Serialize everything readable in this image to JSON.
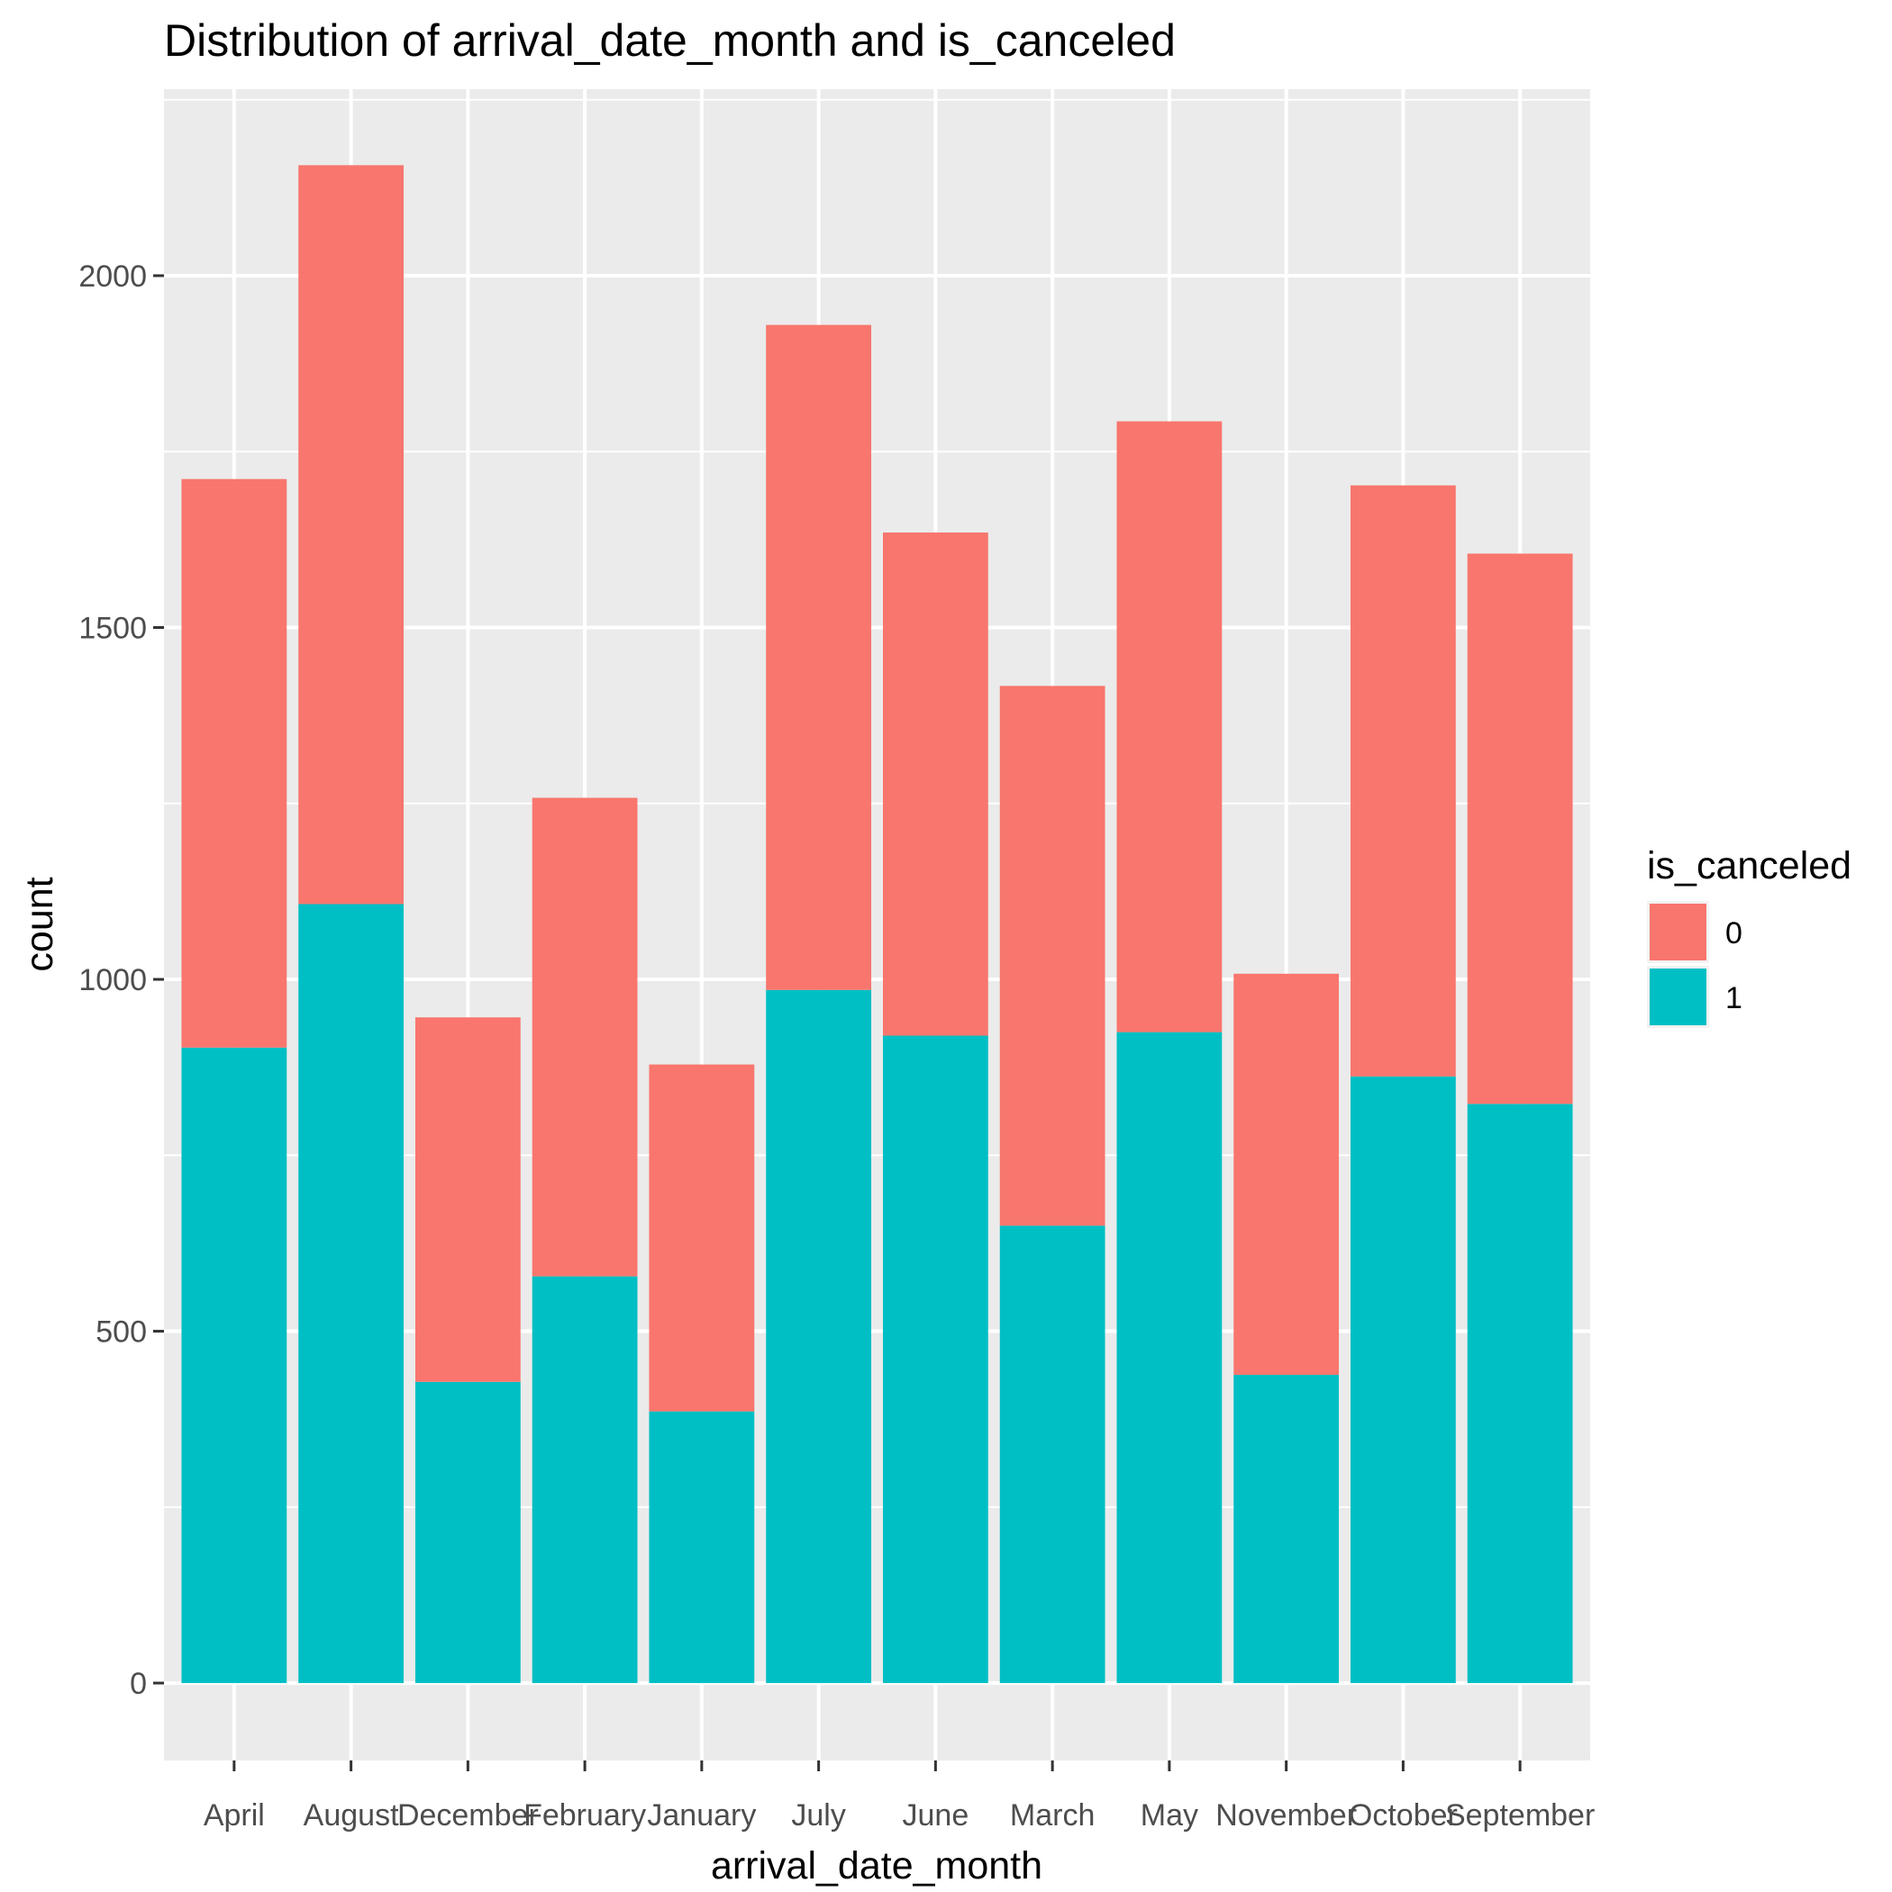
{
  "chart_data": {
    "type": "bar",
    "stacked": true,
    "title": "Distribution of arrival_date_month and is_canceled",
    "xlabel": "arrival_date_month",
    "ylabel": "count",
    "categories": [
      "April",
      "August",
      "December",
      "February",
      "January",
      "July",
      "June",
      "March",
      "May",
      "November",
      "October",
      "September"
    ],
    "series": [
      {
        "name": "0",
        "color": "#F8766D",
        "values": [
          808,
          1050,
          518,
          680,
          493,
          945,
          715,
          767,
          868,
          570,
          840,
          782
        ]
      },
      {
        "name": "1",
        "color": "#00BFC4",
        "values": [
          903,
          1107,
          428,
          578,
          386,
          985,
          920,
          650,
          925,
          438,
          862,
          823
        ]
      }
    ],
    "yticks": [
      0,
      500,
      1000,
      1500,
      2000
    ],
    "ylim": [
      -110,
      2265
    ],
    "grid": true,
    "legend": {
      "title": "is_canceled",
      "position": "right",
      "entries": [
        "0",
        "1"
      ]
    },
    "panel_background": "#EBEBEB"
  }
}
